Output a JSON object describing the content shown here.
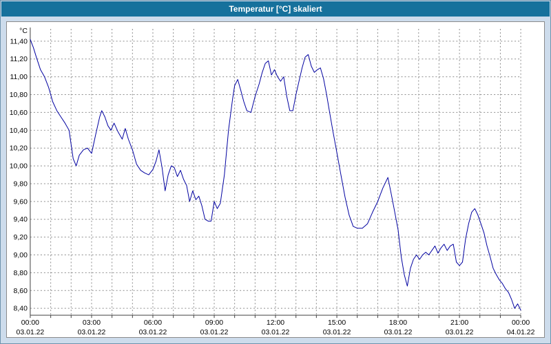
{
  "title": "Temperatur [°C] skaliert",
  "colors": {
    "titlebar_bg": "#16719c",
    "titlebar_text": "#ffffff",
    "window_bg": "#cddcec",
    "panel_bg": "#ffffff",
    "grid": "#8c8c8c",
    "axis": "#404040",
    "line": "#0000a0"
  },
  "chart_data": {
    "type": "line",
    "title": "Temperatur [°C] skaliert",
    "xlabel": "",
    "ylabel": "°C",
    "y_unit_label": "°C",
    "grid": "on",
    "legend": "none",
    "ylim": [
      8.4,
      11.4
    ],
    "xlim_hours": [
      0,
      24
    ],
    "y_tick_values": [
      11.4,
      11.2,
      11.0,
      10.8,
      10.6,
      10.4,
      10.2,
      10.0,
      9.8,
      9.6,
      9.4,
      9.2,
      9.0,
      8.8,
      8.6,
      8.4
    ],
    "y_tick_labels": [
      "11,40",
      "11,20",
      "11,00",
      "10,80",
      "10,60",
      "10,40",
      "10,20",
      "10,00",
      "9,80",
      "9,60",
      "9,40",
      "9,20",
      "9,00",
      "8,80",
      "8,60",
      "8,40"
    ],
    "x_tick_hours": [
      0,
      3,
      6,
      9,
      12,
      15,
      18,
      21,
      24
    ],
    "x_tick_times": [
      "00:00",
      "03:00",
      "06:00",
      "09:00",
      "12:00",
      "15:00",
      "18:00",
      "21:00",
      "00:00"
    ],
    "x_tick_dates": [
      "03.01.22",
      "03.01.22",
      "03.01.22",
      "03.01.22",
      "03.01.22",
      "03.01.22",
      "03.01.22",
      "03.01.22",
      "04.01.22"
    ],
    "series": [
      {
        "name": "Temperatur",
        "color": "#0000a0",
        "points": [
          [
            0.0,
            11.42
          ],
          [
            0.15,
            11.33
          ],
          [
            0.3,
            11.22
          ],
          [
            0.5,
            11.08
          ],
          [
            0.7,
            11.0
          ],
          [
            0.9,
            10.88
          ],
          [
            1.1,
            10.72
          ],
          [
            1.3,
            10.62
          ],
          [
            1.5,
            10.55
          ],
          [
            1.7,
            10.48
          ],
          [
            1.9,
            10.4
          ],
          [
            2.1,
            10.08
          ],
          [
            2.25,
            10.0
          ],
          [
            2.4,
            10.12
          ],
          [
            2.6,
            10.18
          ],
          [
            2.8,
            10.2
          ],
          [
            3.0,
            10.14
          ],
          [
            3.2,
            10.35
          ],
          [
            3.4,
            10.55
          ],
          [
            3.5,
            10.62
          ],
          [
            3.65,
            10.55
          ],
          [
            3.8,
            10.45
          ],
          [
            3.95,
            10.4
          ],
          [
            4.1,
            10.48
          ],
          [
            4.3,
            10.38
          ],
          [
            4.5,
            10.3
          ],
          [
            4.65,
            10.42
          ],
          [
            4.8,
            10.3
          ],
          [
            5.0,
            10.18
          ],
          [
            5.2,
            10.02
          ],
          [
            5.4,
            9.95
          ],
          [
            5.6,
            9.92
          ],
          [
            5.8,
            9.9
          ],
          [
            6.0,
            9.96
          ],
          [
            6.15,
            10.05
          ],
          [
            6.3,
            10.18
          ],
          [
            6.45,
            9.98
          ],
          [
            6.6,
            9.72
          ],
          [
            6.75,
            9.9
          ],
          [
            6.9,
            10.0
          ],
          [
            7.05,
            9.98
          ],
          [
            7.2,
            9.88
          ],
          [
            7.35,
            9.95
          ],
          [
            7.5,
            9.85
          ],
          [
            7.65,
            9.78
          ],
          [
            7.8,
            9.6
          ],
          [
            7.95,
            9.72
          ],
          [
            8.1,
            9.62
          ],
          [
            8.25,
            9.66
          ],
          [
            8.4,
            9.55
          ],
          [
            8.55,
            9.4
          ],
          [
            8.7,
            9.38
          ],
          [
            8.85,
            9.38
          ],
          [
            9.0,
            9.6
          ],
          [
            9.15,
            9.52
          ],
          [
            9.3,
            9.58
          ],
          [
            9.5,
            9.9
          ],
          [
            9.7,
            10.4
          ],
          [
            9.9,
            10.75
          ],
          [
            10.0,
            10.9
          ],
          [
            10.15,
            10.97
          ],
          [
            10.3,
            10.85
          ],
          [
            10.45,
            10.72
          ],
          [
            10.6,
            10.62
          ],
          [
            10.8,
            10.6
          ],
          [
            11.0,
            10.78
          ],
          [
            11.2,
            10.92
          ],
          [
            11.35,
            11.05
          ],
          [
            11.5,
            11.15
          ],
          [
            11.65,
            11.18
          ],
          [
            11.8,
            11.02
          ],
          [
            11.95,
            11.08
          ],
          [
            12.1,
            11.0
          ],
          [
            12.25,
            10.95
          ],
          [
            12.4,
            11.0
          ],
          [
            12.55,
            10.78
          ],
          [
            12.7,
            10.62
          ],
          [
            12.85,
            10.62
          ],
          [
            13.0,
            10.8
          ],
          [
            13.15,
            10.95
          ],
          [
            13.3,
            11.1
          ],
          [
            13.45,
            11.22
          ],
          [
            13.6,
            11.25
          ],
          [
            13.75,
            11.12
          ],
          [
            13.9,
            11.05
          ],
          [
            14.05,
            11.08
          ],
          [
            14.2,
            11.1
          ],
          [
            14.35,
            10.98
          ],
          [
            14.5,
            10.8
          ],
          [
            14.65,
            10.6
          ],
          [
            14.8,
            10.4
          ],
          [
            15.0,
            10.15
          ],
          [
            15.2,
            9.9
          ],
          [
            15.4,
            9.65
          ],
          [
            15.6,
            9.45
          ],
          [
            15.8,
            9.32
          ],
          [
            16.0,
            9.3
          ],
          [
            16.25,
            9.3
          ],
          [
            16.5,
            9.35
          ],
          [
            16.75,
            9.48
          ],
          [
            17.0,
            9.6
          ],
          [
            17.25,
            9.75
          ],
          [
            17.5,
            9.87
          ],
          [
            17.65,
            9.7
          ],
          [
            17.8,
            9.52
          ],
          [
            18.0,
            9.28
          ],
          [
            18.15,
            8.98
          ],
          [
            18.3,
            8.78
          ],
          [
            18.45,
            8.65
          ],
          [
            18.6,
            8.85
          ],
          [
            18.75,
            8.95
          ],
          [
            18.9,
            9.0
          ],
          [
            19.05,
            8.95
          ],
          [
            19.2,
            9.0
          ],
          [
            19.35,
            9.03
          ],
          [
            19.5,
            9.0
          ],
          [
            19.65,
            9.05
          ],
          [
            19.8,
            9.1
          ],
          [
            19.95,
            9.02
          ],
          [
            20.1,
            9.08
          ],
          [
            20.25,
            9.12
          ],
          [
            20.4,
            9.05
          ],
          [
            20.55,
            9.1
          ],
          [
            20.7,
            9.12
          ],
          [
            20.85,
            8.92
          ],
          [
            21.0,
            8.88
          ],
          [
            21.15,
            8.92
          ],
          [
            21.3,
            9.18
          ],
          [
            21.45,
            9.35
          ],
          [
            21.6,
            9.48
          ],
          [
            21.75,
            9.52
          ],
          [
            21.9,
            9.45
          ],
          [
            22.05,
            9.35
          ],
          [
            22.2,
            9.25
          ],
          [
            22.35,
            9.1
          ],
          [
            22.5,
            8.98
          ],
          [
            22.65,
            8.85
          ],
          [
            22.8,
            8.78
          ],
          [
            22.95,
            8.72
          ],
          [
            23.1,
            8.68
          ],
          [
            23.25,
            8.62
          ],
          [
            23.4,
            8.58
          ],
          [
            23.55,
            8.5
          ],
          [
            23.7,
            8.4
          ],
          [
            23.85,
            8.45
          ],
          [
            24.0,
            8.38
          ]
        ]
      }
    ]
  }
}
